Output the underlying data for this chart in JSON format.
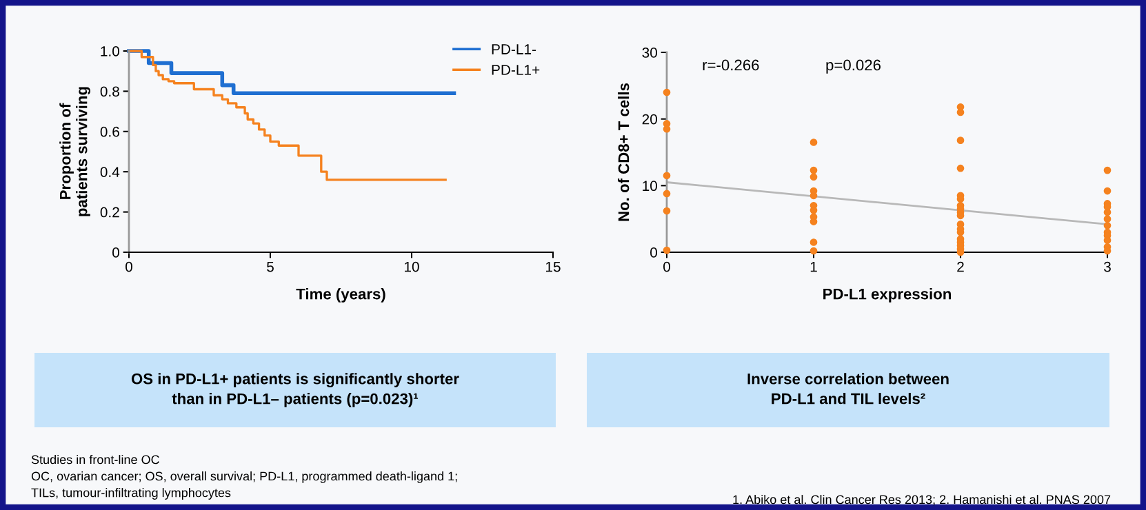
{
  "chart_data": [
    {
      "type": "step",
      "xlabel": "Time (years)",
      "ylabel": "Proportion of\npatients surviving",
      "xlim": [
        0,
        15
      ],
      "xticks": [
        0,
        5,
        10,
        15
      ],
      "ylim": [
        0,
        1.0
      ],
      "yticks": [
        0,
        {
          "value": 0.2,
          "label": "0.2"
        },
        {
          "value": 0.4,
          "label": "0.4"
        },
        {
          "value": 0.6,
          "label": "0.6"
        },
        {
          "value": 0.8,
          "label": "0.8"
        },
        {
          "value": 1.0,
          "label": "1.0"
        }
      ],
      "grid": false,
      "legend": "top right",
      "marker": "none",
      "line_style": "solid",
      "series": [
        {
          "name": "PD-L1-",
          "color": "#1f6fd1",
          "x": [
            0,
            0.7,
            1.5,
            3.3,
            3.7,
            11.5
          ],
          "values": [
            1.0,
            0.94,
            0.89,
            0.83,
            0.79,
            0.79
          ]
        },
        {
          "name": "PD-L1+",
          "color": "#f5821f",
          "x": [
            0,
            0.45,
            0.85,
            0.95,
            1.05,
            1.2,
            1.4,
            1.6,
            2.3,
            3.0,
            3.3,
            3.5,
            3.8,
            4.1,
            4.2,
            4.4,
            4.6,
            4.8,
            5.0,
            5.3,
            6.0,
            6.8,
            7.0,
            11.2
          ],
          "values": [
            1.0,
            0.97,
            0.93,
            0.9,
            0.88,
            0.86,
            0.85,
            0.84,
            0.81,
            0.78,
            0.76,
            0.74,
            0.72,
            0.69,
            0.66,
            0.64,
            0.61,
            0.58,
            0.55,
            0.53,
            0.48,
            0.4,
            0.36,
            0.36
          ]
        }
      ],
      "annotations": [
        "OS in PD-L1+ patients is significantly shorter\nthan in PD-L1– patients (p=0.023)¹",
        "Studies in front-line OC\nOC, ovarian cancer; OS, overall survival; PD-L1, programmed death-ligand 1;\nTILs, tumour-infiltrating lymphocytes"
      ]
    },
    {
      "type": "scatter",
      "xlabel": "PD-L1 expression",
      "ylabel": "No. of CD8+ T cells",
      "xlim": [
        0,
        3
      ],
      "xticks": [
        0,
        1,
        2,
        3
      ],
      "ylim": [
        0,
        30
      ],
      "yticks": [
        0,
        10,
        20,
        30
      ],
      "grid": false,
      "legend": false,
      "marker": "circle",
      "series": [
        {
          "color": "#f5821f",
          "x": [
            0,
            0,
            0,
            0,
            0,
            0,
            0,
            1,
            1,
            1,
            1,
            1,
            1,
            1,
            1,
            1,
            1,
            1,
            2,
            2,
            2,
            2,
            2,
            2,
            2,
            2,
            2,
            2,
            2,
            2,
            2,
            2,
            2,
            2,
            2,
            2,
            3,
            3,
            3,
            3,
            3,
            3,
            3,
            3,
            3,
            3,
            3,
            3
          ],
          "values": [
            24,
            19.3,
            18.5,
            11.5,
            8.8,
            6.2,
            0.3,
            16.5,
            12.3,
            11.3,
            9.2,
            8.5,
            7,
            6.3,
            5.3,
            4.6,
            1.5,
            0.2,
            21.8,
            21,
            16.8,
            12.6,
            8.5,
            8,
            7,
            6.5,
            6,
            5.5,
            4.2,
            3.5,
            3,
            2,
            1.5,
            1,
            0.5,
            0,
            12.3,
            9.2,
            7.3,
            6.8,
            6,
            5,
            4,
            3,
            2.5,
            1.8,
            0.8,
            0.2
          ]
        },
        {
          "type": "line",
          "marker": "none",
          "color": "#b8b8b8",
          "x": [
            0,
            3
          ],
          "values": [
            10.5,
            4.2
          ]
        }
      ],
      "annotations": [
        "r=-0.266",
        "p=0.026",
        "Inverse correlation between\nPD-L1 and TIL levels²",
        "1. Abiko et al. Clin Cancer Res 2013; 2. Hamanishi et al. PNAS 2007"
      ]
    }
  ]
}
